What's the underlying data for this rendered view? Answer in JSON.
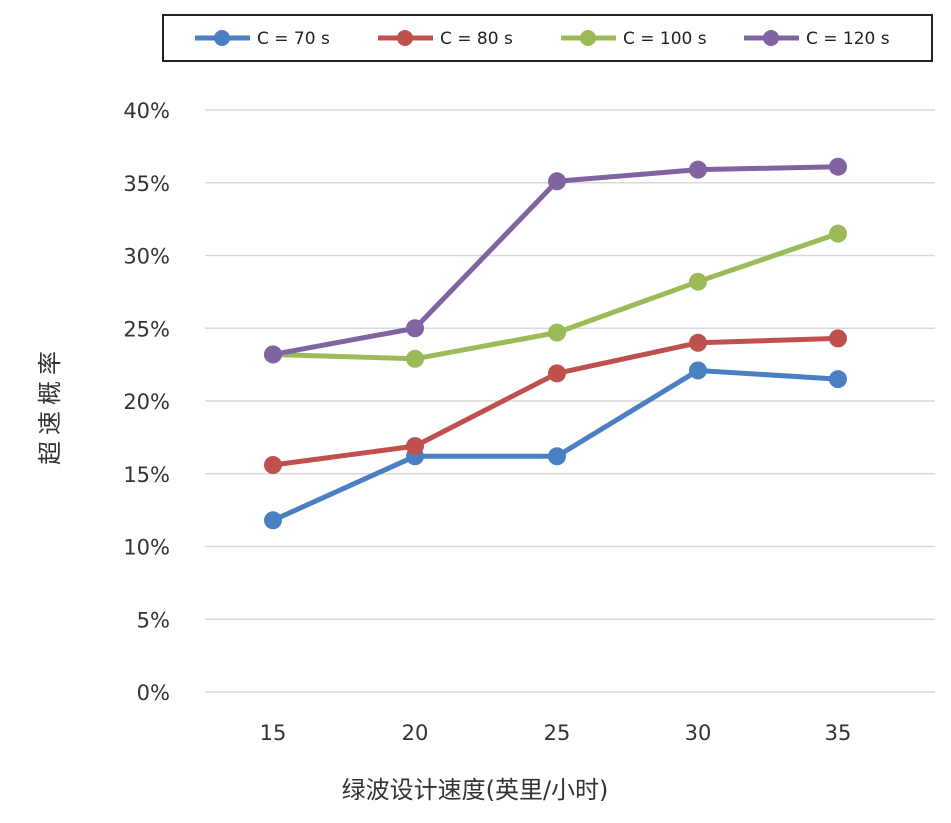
{
  "chart_data": {
    "type": "line",
    "title": "",
    "xlabel": "绿波设计速度(英里/小时)",
    "ylabel": "超速概率",
    "x": [
      15,
      20,
      25,
      30,
      35
    ],
    "x_tick_labels": [
      "15",
      "20",
      "25",
      "30",
      "35"
    ],
    "ylim": [
      0,
      40
    ],
    "y_ticks": [
      0,
      5,
      10,
      15,
      20,
      25,
      30,
      35,
      40
    ],
    "y_tick_labels": [
      "0%",
      "5%",
      "10%",
      "15%",
      "20%",
      "25%",
      "30%",
      "35%",
      "40%"
    ],
    "grid": "horizontal",
    "legend_position": "top",
    "series": [
      {
        "name": "C = 70 s",
        "color": "#4a7fc1",
        "values": [
          11.8,
          16.2,
          16.2,
          22.1,
          21.5
        ]
      },
      {
        "name": "C = 80 s",
        "color": "#c0504d",
        "values": [
          15.6,
          16.9,
          21.9,
          24.0,
          24.3
        ]
      },
      {
        "name": "C = 100 s",
        "color": "#9bbb59",
        "values": [
          23.2,
          22.9,
          24.7,
          28.2,
          31.5
        ]
      },
      {
        "name": "C = 120 s",
        "color": "#8064a2",
        "values": [
          23.2,
          25.0,
          35.1,
          35.9,
          36.1
        ]
      }
    ]
  }
}
